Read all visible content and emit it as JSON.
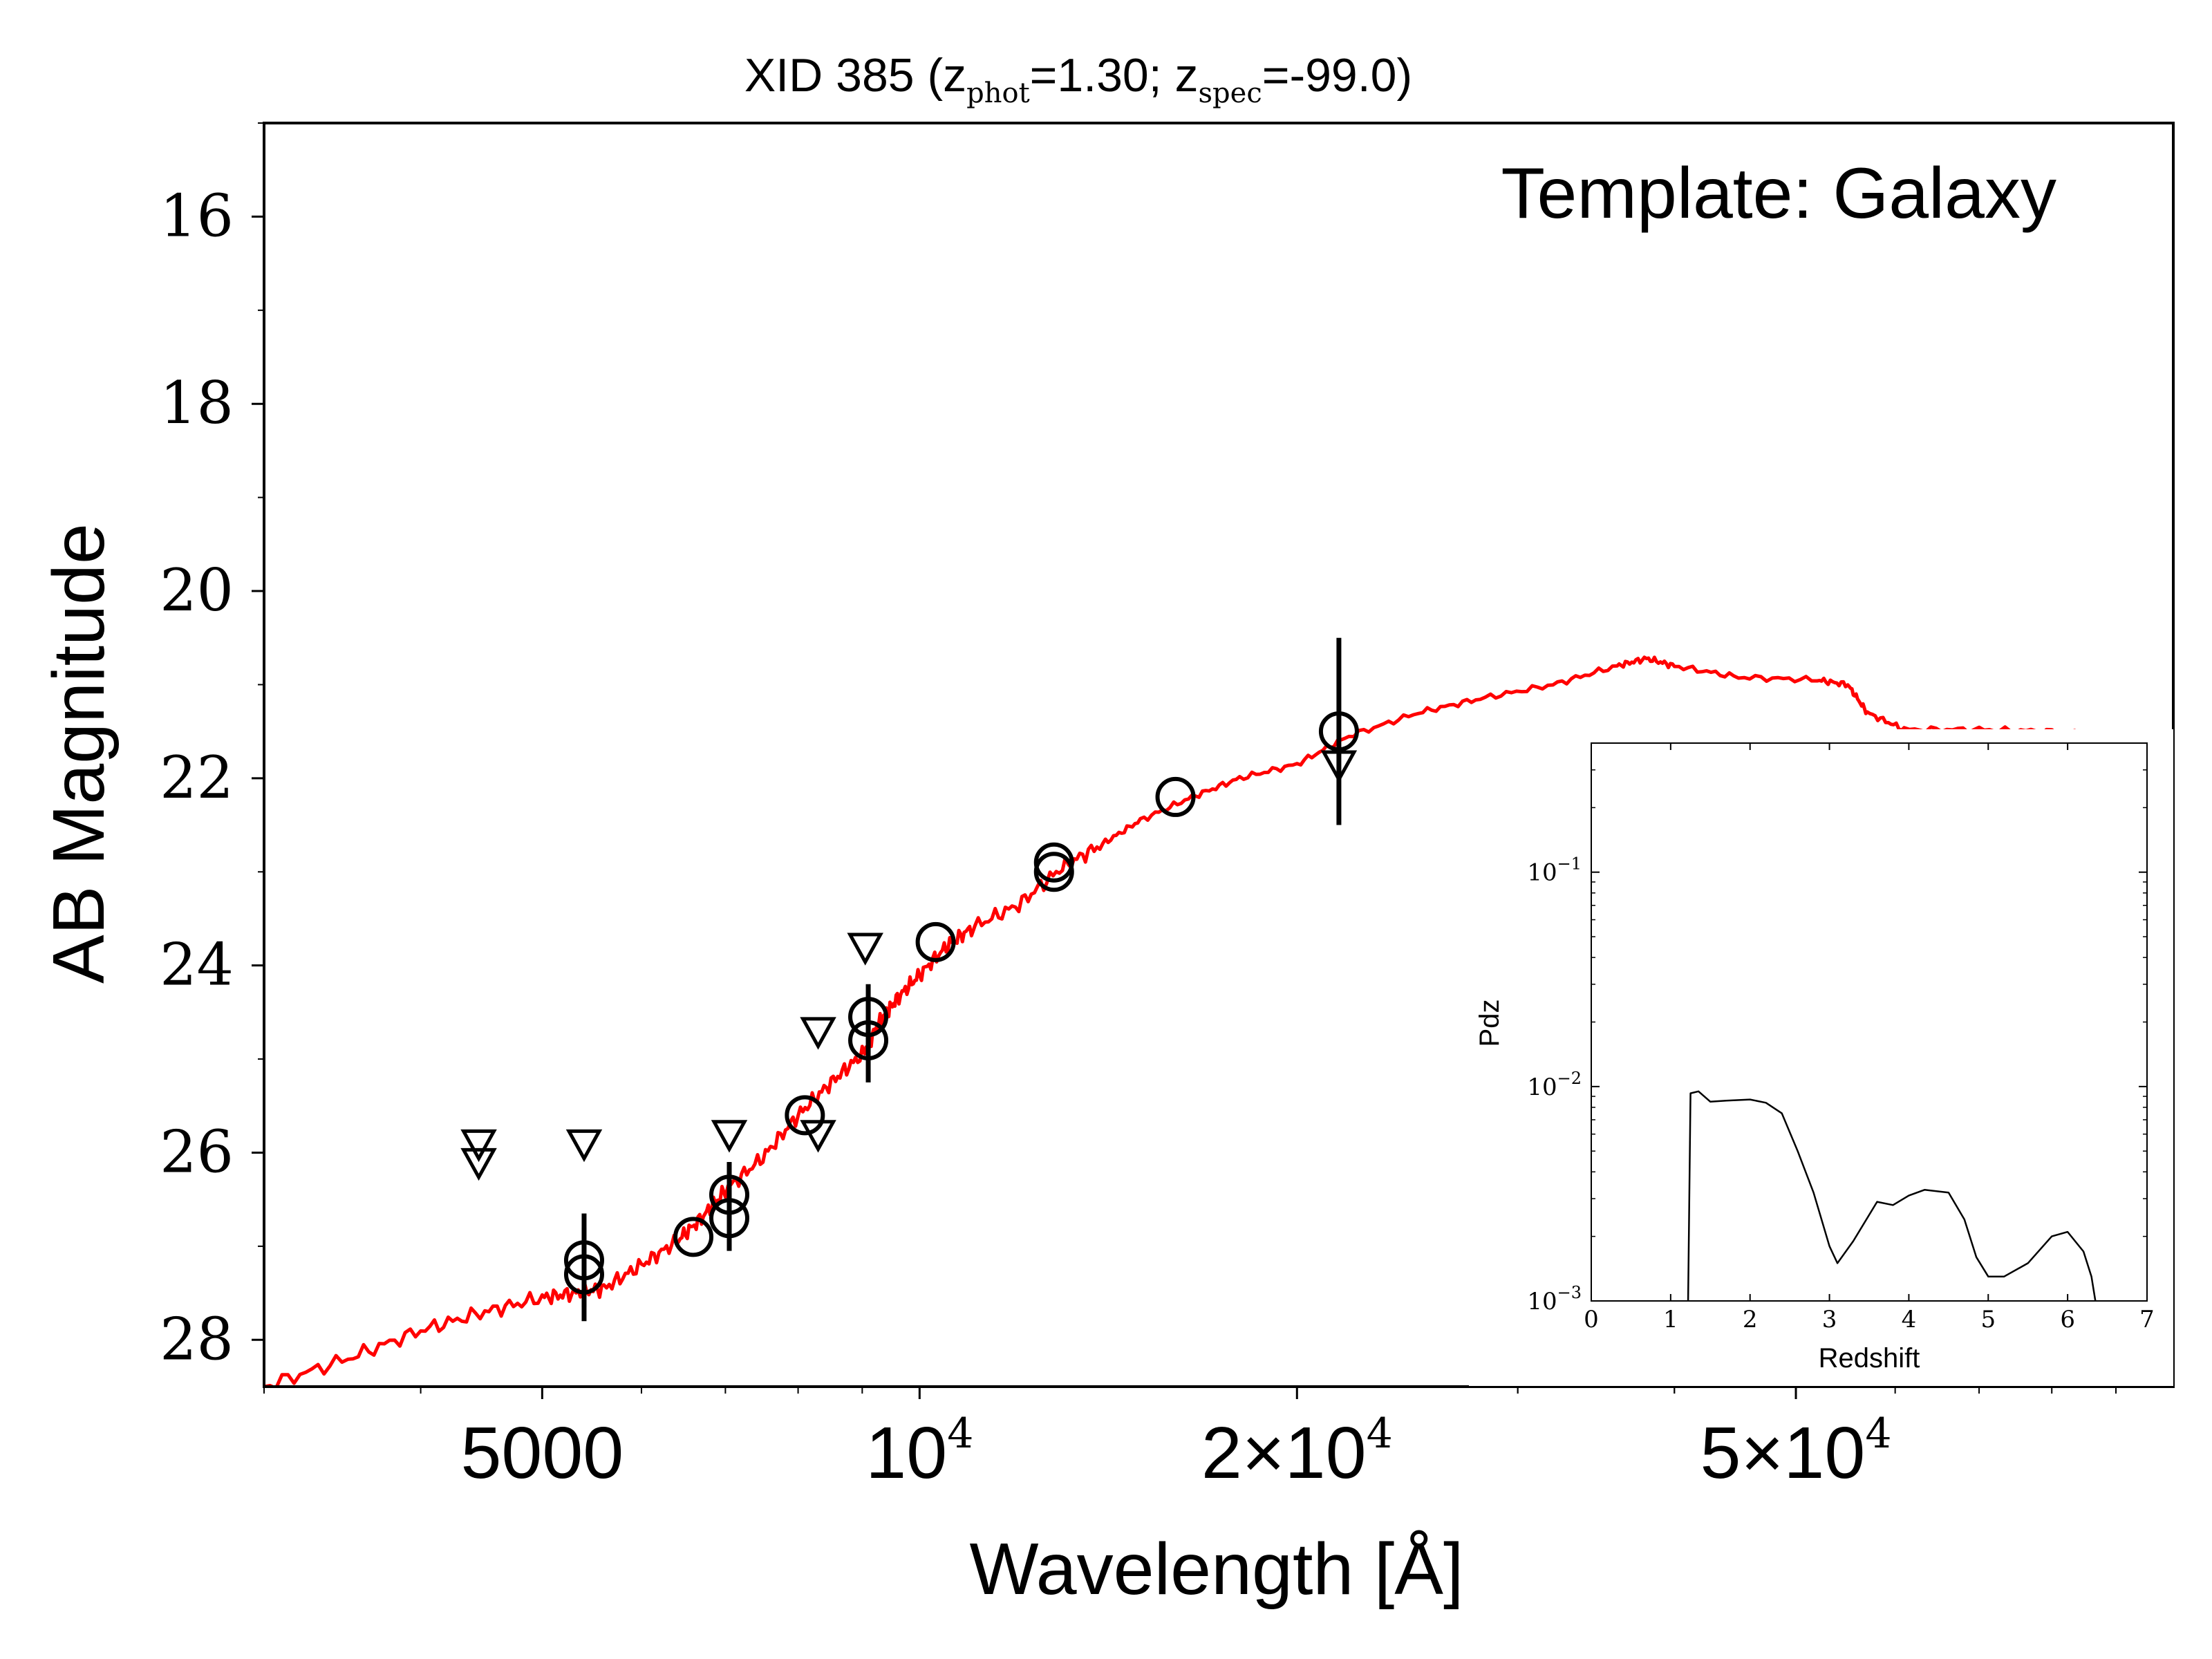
{
  "chart_data": [
    {
      "type": "scatter",
      "title_main": "XID 385 (z",
      "title_sub1": "phot",
      "title_mid": "=1.30; z",
      "title_sub2": "spec",
      "title_end": "=-99.0)",
      "xlabel": "Wavelength [Å]",
      "ylabel": "AB Magnitude",
      "annotation": "Template: Galaxy",
      "x_scale": "log",
      "xlim": [
        3000,
        100000
      ],
      "ylim": [
        28.5,
        15.0
      ],
      "y_inverted": true,
      "yticks": [
        16,
        18,
        20,
        22,
        24,
        26,
        28
      ],
      "xticks": [
        {
          "value": 5000,
          "base": "5000",
          "exp": ""
        },
        {
          "value": 10000,
          "base": "10",
          "exp": "4"
        },
        {
          "value": 20000,
          "base": "2×10",
          "exp": "4"
        },
        {
          "value": 50000,
          "base": "5×10",
          "exp": "4"
        }
      ],
      "colors": {
        "model": "#ff0000",
        "points": "#000000"
      },
      "model_curve": [
        [
          3000,
          28.5
        ],
        [
          3500,
          28.2
        ],
        [
          4000,
          27.9
        ],
        [
          4500,
          27.7
        ],
        [
          5000,
          27.55
        ],
        [
          5300,
          27.5
        ],
        [
          5600,
          27.45
        ],
        [
          6000,
          27.2
        ],
        [
          6400,
          26.95
        ],
        [
          6700,
          26.7
        ],
        [
          7000,
          26.4
        ],
        [
          7500,
          26.05
        ],
        [
          8000,
          25.6
        ],
        [
          8500,
          25.25
        ],
        [
          9000,
          24.95
        ],
        [
          9300,
          24.6
        ],
        [
          9600,
          24.35
        ],
        [
          10000,
          24.1
        ],
        [
          10500,
          23.8
        ],
        [
          11000,
          23.6
        ],
        [
          12000,
          23.35
        ],
        [
          13000,
          22.95
        ],
        [
          14000,
          22.7
        ],
        [
          15000,
          22.45
        ],
        [
          16500,
          22.2
        ],
        [
          18000,
          22.0
        ],
        [
          20000,
          21.85
        ],
        [
          22000,
          21.55
        ],
        [
          25000,
          21.3
        ],
        [
          28000,
          21.15
        ],
        [
          32000,
          21.0
        ],
        [
          36000,
          20.8
        ],
        [
          38000,
          20.72
        ],
        [
          40000,
          20.8
        ],
        [
          45000,
          20.92
        ],
        [
          52000,
          20.95
        ],
        [
          55000,
          21.0
        ],
        [
          57000,
          21.3
        ],
        [
          61000,
          21.48
        ],
        [
          70000,
          21.48
        ],
        [
          80000,
          21.5
        ],
        [
          90000,
          21.55
        ],
        [
          100000,
          21.65
        ]
      ],
      "detections": [
        {
          "x": 5400,
          "y": 27.15,
          "err": 0.5
        },
        {
          "x": 5400,
          "y": 27.3,
          "err": 0.5
        },
        {
          "x": 6600,
          "y": 26.9,
          "err": 0.0
        },
        {
          "x": 7050,
          "y": 26.45,
          "err": 0.35
        },
        {
          "x": 7050,
          "y": 26.7,
          "err": 0.35
        },
        {
          "x": 8100,
          "y": 25.6,
          "err": 0.0
        },
        {
          "x": 9100,
          "y": 24.55,
          "err": 0.35
        },
        {
          "x": 9100,
          "y": 24.8,
          "err": 0.45
        },
        {
          "x": 10300,
          "y": 23.75,
          "err": 0.0
        },
        {
          "x": 12800,
          "y": 22.9,
          "err": 0.0
        },
        {
          "x": 12800,
          "y": 23.0,
          "err": 0.0
        },
        {
          "x": 16000,
          "y": 22.2,
          "err": 0.0
        },
        {
          "x": 21600,
          "y": 21.5,
          "err": 1.0
        }
      ],
      "upper_limits": [
        {
          "x": 4450,
          "y": 25.9
        },
        {
          "x": 4450,
          "y": 26.1
        },
        {
          "x": 5400,
          "y": 25.9
        },
        {
          "x": 7050,
          "y": 25.8
        },
        {
          "x": 8300,
          "y": 24.7
        },
        {
          "x": 8300,
          "y": 25.8
        },
        {
          "x": 9050,
          "y": 23.8
        },
        {
          "x": 21600,
          "y": 21.85
        }
      ]
    },
    {
      "type": "line",
      "xlabel": "Redshift",
      "ylabel": "Pdz",
      "y_scale": "log",
      "xlim": [
        0,
        7
      ],
      "ylim": [
        0.001,
        0.4
      ],
      "xticks": [
        0,
        1,
        2,
        3,
        4,
        5,
        6,
        7
      ],
      "yticks": [
        {
          "base": "10",
          "exp": "−1",
          "value": 0.1
        },
        {
          "base": "10",
          "exp": "−2",
          "value": 0.01
        },
        {
          "base": "10",
          "exp": "−3",
          "value": 0.001
        }
      ],
      "colors": {
        "line": "#000000"
      },
      "series": [
        {
          "x": [
            1.22,
            1.25,
            1.35,
            1.5,
            1.7,
            2.0,
            2.2,
            2.4,
            2.6,
            2.8,
            3.0,
            3.1,
            3.3,
            3.6,
            3.8,
            4.0,
            4.2,
            4.5,
            4.7,
            4.85,
            5.0,
            5.2,
            5.5,
            5.8,
            6.0,
            6.2,
            6.3,
            6.35
          ],
          "y": [
            0.001,
            0.0093,
            0.0095,
            0.0085,
            0.0086,
            0.0087,
            0.0084,
            0.0075,
            0.005,
            0.0032,
            0.0018,
            0.0015,
            0.0019,
            0.0029,
            0.0028,
            0.0031,
            0.0033,
            0.0032,
            0.0024,
            0.0016,
            0.0013,
            0.0013,
            0.0015,
            0.002,
            0.0021,
            0.0017,
            0.0013,
            0.001
          ]
        }
      ]
    }
  ]
}
